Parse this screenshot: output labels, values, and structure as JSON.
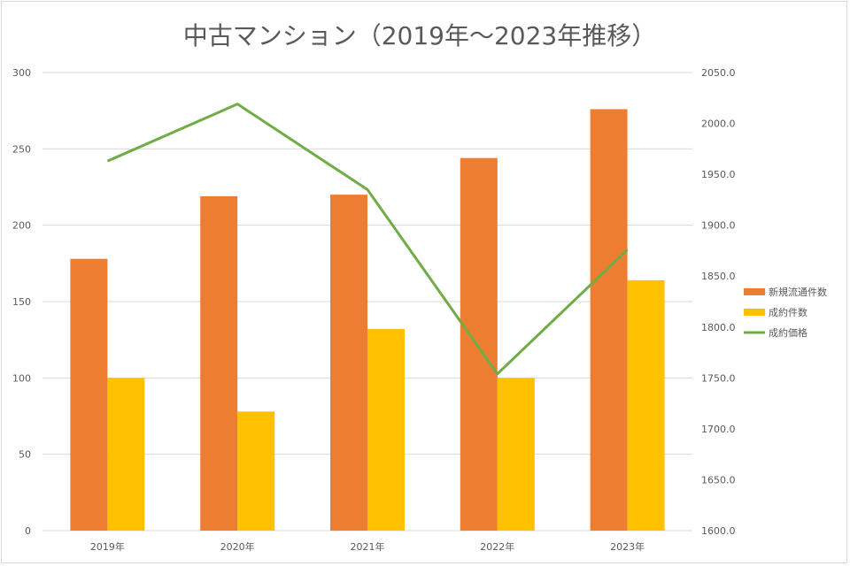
{
  "chart_data": {
    "type": "bar",
    "title": "中古マンション（2019年～2023年推移）",
    "categories": [
      "2019年",
      "2020年",
      "2021年",
      "2022年",
      "2023年"
    ],
    "series": [
      {
        "name": "新規流通件数",
        "type": "bar",
        "axis": "left",
        "color": "#ED7D31",
        "values": [
          178,
          219,
          220,
          244,
          276
        ]
      },
      {
        "name": "成約件数",
        "type": "bar",
        "axis": "left",
        "color": "#FFC000",
        "values": [
          100,
          78,
          132,
          100,
          164
        ]
      },
      {
        "name": "成約価格",
        "type": "line",
        "axis": "right",
        "color": "#70AD47",
        "values": [
          1963,
          2019,
          1935,
          1754,
          1876
        ]
      }
    ],
    "y_left": {
      "min": 0,
      "max": 300,
      "step": 50,
      "ticks": [
        "0",
        "50",
        "100",
        "150",
        "200",
        "250",
        "300"
      ]
    },
    "y_right": {
      "min": 1600,
      "max": 2050,
      "step": 50,
      "ticks": [
        "1600.0",
        "1650.0",
        "1700.0",
        "1750.0",
        "1800.0",
        "1850.0",
        "1900.0",
        "1950.0",
        "2000.0",
        "2050.0"
      ]
    },
    "grid": true,
    "legend": "right"
  }
}
